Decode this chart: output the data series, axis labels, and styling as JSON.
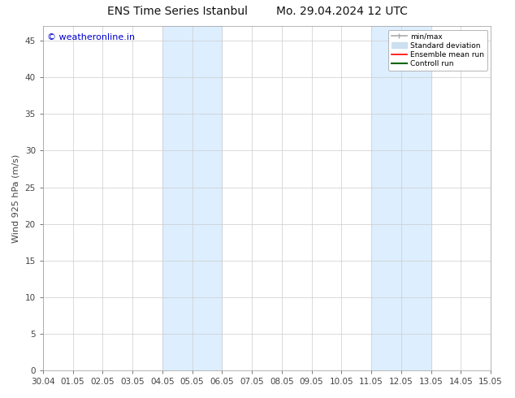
{
  "title_left": "ENS Time Series Istanbul",
  "title_right": "Mo. 29.04.2024 12 UTC",
  "ylabel": "Wind 925 hPa (m/s)",
  "watermark": "© weatheronline.in",
  "watermark_color": "#0000cc",
  "ylim": [
    0,
    47
  ],
  "yticks": [
    0,
    5,
    10,
    15,
    20,
    25,
    30,
    35,
    40,
    45
  ],
  "xtick_labels": [
    "30.04",
    "01.05",
    "02.05",
    "03.05",
    "04.05",
    "05.05",
    "06.05",
    "07.05",
    "08.05",
    "09.05",
    "10.05",
    "11.05",
    "12.05",
    "13.05",
    "14.05",
    "15.05"
  ],
  "background_color": "#ffffff",
  "plot_bg_color": "#ffffff",
  "shaded_regions": [
    {
      "xstart": 4,
      "xend": 6,
      "color": "#ddeeff"
    },
    {
      "xstart": 11,
      "xend": 13,
      "color": "#ddeeff"
    }
  ],
  "legend_items": [
    {
      "label": "min/max",
      "color": "#aaaaaa",
      "lw": 1.2
    },
    {
      "label": "Standard deviation",
      "color": "#cce0f0",
      "lw": 6
    },
    {
      "label": "Ensemble mean run",
      "color": "#ff0000",
      "lw": 1.2
    },
    {
      "label": "Controll run",
      "color": "#006600",
      "lw": 1.5
    }
  ],
  "grid_color": "#cccccc",
  "spine_color": "#999999",
  "tick_color": "#444444",
  "title_fontsize": 10,
  "label_fontsize": 8,
  "tick_fontsize": 7.5,
  "watermark_fontsize": 8
}
